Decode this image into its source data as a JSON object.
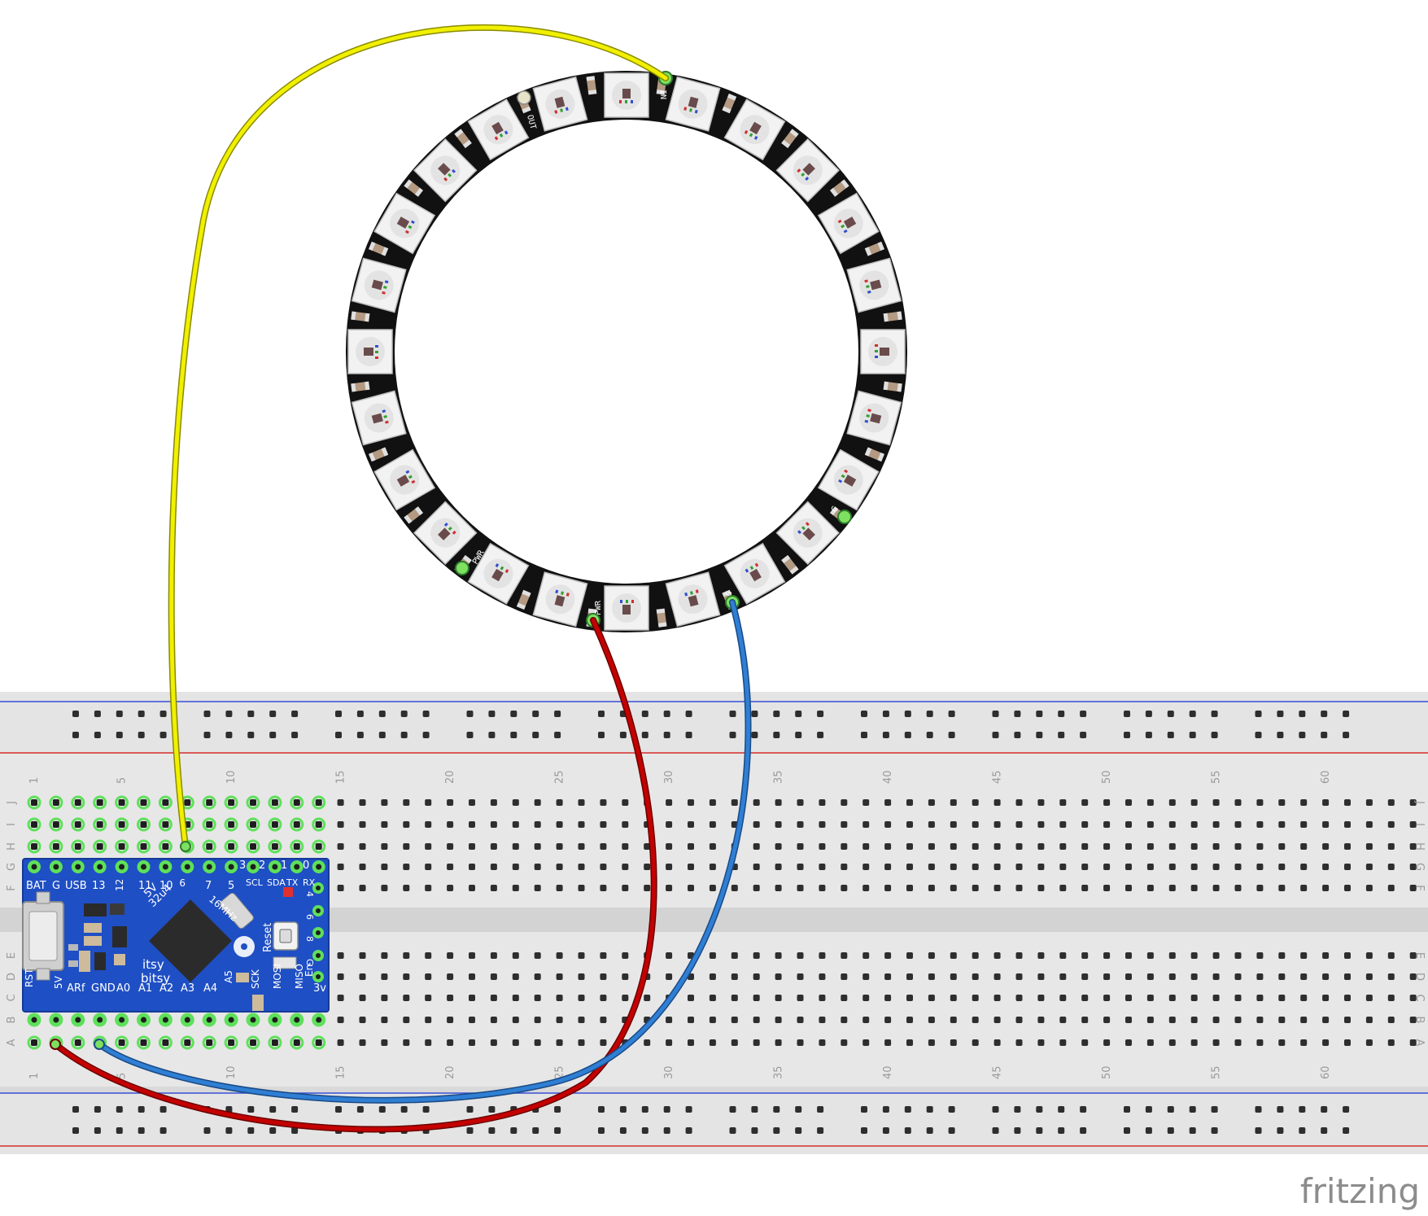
{
  "app": {
    "logo_text": "fritzing"
  },
  "colors": {
    "breadboard": "#d9d9d9",
    "breadboard_inner": "#e6e6e6",
    "rail_blue": "#3a4fd6",
    "rail_red": "#d62c2c",
    "hole": "#2e2e2e",
    "hole_active": "#5ee05a",
    "board_pcb": "#1f4fc4",
    "ring_pcb": "#111111",
    "led_body": "#f2f2f2",
    "wire_yellow": "#f0f000",
    "wire_red": "#c40000",
    "wire_blue": "#2f7fd4",
    "logo": "#8c8c8c"
  },
  "breadboard": {
    "columns": 64,
    "column_numbers": [
      "1",
      "5",
      "10",
      "15",
      "20",
      "25",
      "30",
      "35",
      "40",
      "45",
      "50",
      "55",
      "60"
    ],
    "row_letters_top": [
      "J",
      "I",
      "H",
      "G",
      "F"
    ],
    "row_letters_bottom": [
      "E",
      "D",
      "C",
      "B",
      "A"
    ]
  },
  "neopixel_ring": {
    "led_count": 24,
    "pad_labels": {
      "data_in": "IN",
      "data_out": "OUT",
      "power": "PWR",
      "ground": "G"
    }
  },
  "microcontroller": {
    "top_pin_labels": [
      "BAT",
      "G",
      "USB",
      "13",
      "12",
      "11",
      "10",
      "9",
      "7",
      "5",
      "SCL",
      "SDA",
      "TX",
      "RX"
    ],
    "top_pin_numbers": [
      "3",
      "2",
      "1",
      "0"
    ],
    "bottom_pin_labels": [
      "RST",
      "5V",
      "ARf",
      "GND",
      "A0",
      "A1",
      "A2",
      "A3",
      "A4",
      "A5",
      "SCK",
      "MOSI",
      "MISO",
      "En",
      "3v"
    ],
    "side_pin_labels": [
      "4",
      "6",
      "8",
      "G"
    ],
    "chip_text": [
      "32u4",
      "5V"
    ],
    "crystal_text": "16MHz",
    "button_text": "Reset",
    "brand_text": [
      "itsy",
      "bitsy"
    ]
  },
  "wires": [
    {
      "color": "yellow",
      "from": "ring IN",
      "to": "breadboard I-8"
    },
    {
      "color": "red",
      "from": "ring PWR",
      "to": "breadboard A-2"
    },
    {
      "color": "blue",
      "from": "ring G",
      "to": "breadboard A-4"
    }
  ]
}
